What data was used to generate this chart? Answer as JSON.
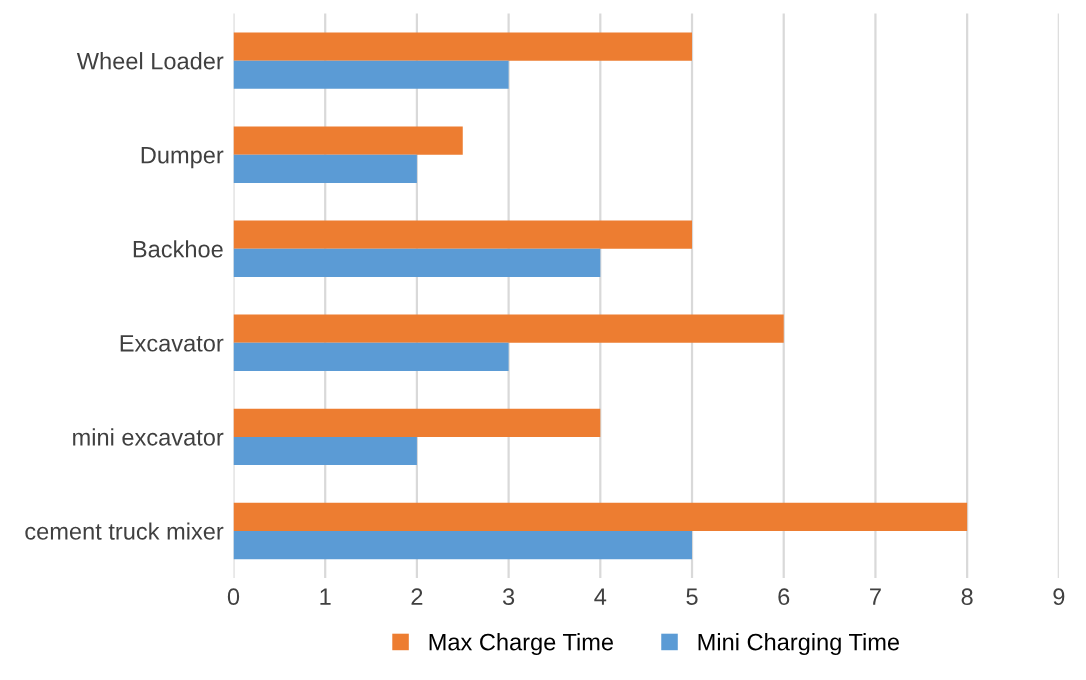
{
  "chart_data": {
    "type": "bar",
    "orientation": "horizontal",
    "categories": [
      "Wheel Loader",
      "Dumper",
      "Backhoe",
      "Excavator",
      "mini excavator",
      "cement truck mixer"
    ],
    "series": [
      {
        "name": "Max Charge Time",
        "color": "#ed7d31",
        "values": [
          5,
          2.5,
          5,
          6,
          4,
          8
        ]
      },
      {
        "name": "Mini Charging Time",
        "color": "#5b9bd5",
        "values": [
          3,
          2,
          4,
          3,
          2,
          5
        ]
      }
    ],
    "xlim": [
      0,
      9
    ],
    "xticks": [
      0,
      1,
      2,
      3,
      4,
      5,
      6,
      7,
      8,
      9
    ],
    "grid": "x",
    "legend": "bottom"
  }
}
